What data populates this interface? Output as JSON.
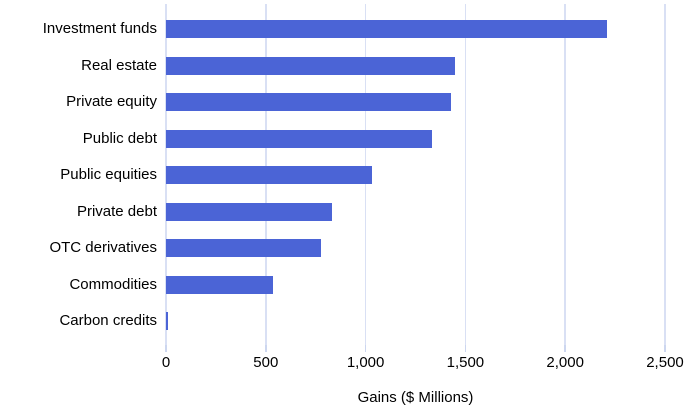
{
  "chart_data": {
    "type": "bar",
    "orientation": "horizontal",
    "title": "",
    "xlabel": "Gains ($ Millions)",
    "ylabel": "",
    "categories": [
      "Investment funds",
      "Real estate",
      "Private equity",
      "Public debt",
      "Public equities",
      "Private debt",
      "OTC derivatives",
      "Commodities",
      "Carbon credits"
    ],
    "values": [
      2210,
      1450,
      1430,
      1335,
      1030,
      830,
      775,
      535,
      5
    ],
    "xlim": [
      0,
      2500
    ],
    "xticks": [
      0,
      500,
      1000,
      1500,
      2000,
      2500
    ],
    "xtick_labels": [
      "0",
      "500",
      "1,000",
      "1,500",
      "2,000",
      "2,500"
    ],
    "grid": "vertical",
    "legend": false,
    "colors": {
      "bar": "#4b64d6",
      "gridline": "#d9e0f4",
      "tick": "#ccd6ef",
      "text": "#000000",
      "background": "#ffffff"
    }
  }
}
